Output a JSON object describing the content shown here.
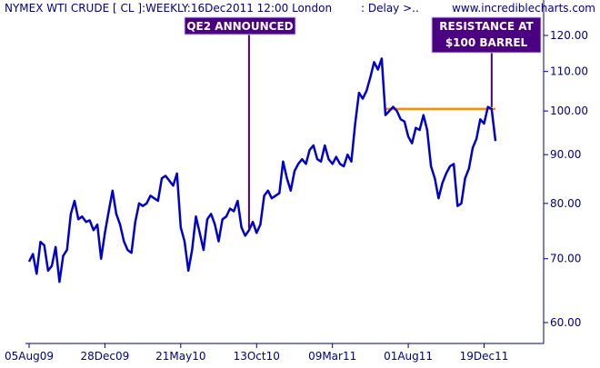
{
  "chart_data": {
    "type": "line",
    "title": "NYMEX WTI CRUDE [ CL ]:WEEKLY:16Dec2011 12:00 London",
    "status": ": Delay >..",
    "source": "www.incrediblecharts.com",
    "y_scale": "log",
    "ylim": [
      55,
      125
    ],
    "y_ticks": [
      60,
      70,
      80,
      90,
      100,
      110,
      120
    ],
    "y_tick_labels": [
      "60.00",
      "70.00",
      "80.00",
      "90.00",
      "100.00",
      "110.00",
      "120.00"
    ],
    "x_tick_labels": [
      "05Aug09",
      "28Dec09",
      "21May10",
      "13Oct10",
      "09Mar11",
      "01Aug11",
      "19Dec11"
    ],
    "x_tick_index": [
      0,
      20,
      40,
      60,
      80,
      100,
      120
    ],
    "grid": false,
    "colors": {
      "series": "#0000cc",
      "axis": "#000080",
      "resistance": "#ff8c00",
      "annotation_box": "#4b0082"
    },
    "series": [
      {
        "values": [
          69.5,
          70.8,
          67.5,
          72.9,
          72.3,
          68.0,
          68.8,
          72.0,
          66.2,
          70.5,
          71.5,
          78.0,
          80.5,
          77.0,
          77.5,
          76.5,
          76.8,
          75.0,
          76.0,
          70.0,
          74.5,
          78.5,
          82.5,
          78.0,
          76.0,
          73.0,
          71.5,
          71.0,
          76.5,
          80.0,
          79.5,
          80.0,
          81.5,
          81.0,
          80.5,
          85.0,
          85.5,
          84.5,
          83.5,
          86.0,
          75.5,
          73.0,
          68.0,
          71.5,
          77.5,
          74.5,
          71.5,
          77.0,
          78.0,
          76.0,
          73.0,
          77.0,
          77.5,
          79.0,
          78.5,
          80.5,
          75.5,
          74.0,
          75.0,
          76.5,
          74.5,
          76.0,
          81.5,
          82.5,
          81.0,
          81.5,
          82.0,
          88.5,
          85.0,
          82.5,
          86.5,
          88.0,
          89.0,
          88.0,
          91.0,
          92.0,
          89.0,
          88.5,
          92.0,
          89.0,
          88.0,
          89.5,
          88.0,
          87.5,
          90.0,
          88.5,
          97.0,
          104.5,
          103.0,
          105.0,
          108.5,
          112.5,
          110.5,
          113.5,
          99.0,
          100.0,
          101.0,
          100.0,
          98.0,
          97.5,
          94.0,
          92.5,
          96.0,
          95.5,
          99.0,
          95.5,
          87.5,
          85.0,
          81.0,
          84.0,
          86.0,
          87.5,
          88.0,
          79.5,
          80.0,
          85.0,
          87.0,
          91.5,
          93.5,
          98.0,
          97.0,
          101.0,
          100.5,
          93.0
        ]
      }
    ],
    "annotations": [
      {
        "text": "QE2 ANNOUNCED",
        "index": 58
      },
      {
        "text_lines": [
          "RESISTANCE AT",
          "$100 BARREL"
        ],
        "index": 122
      }
    ],
    "resistance": {
      "value": 100.5,
      "from_index": 94,
      "to_index": 123
    }
  }
}
